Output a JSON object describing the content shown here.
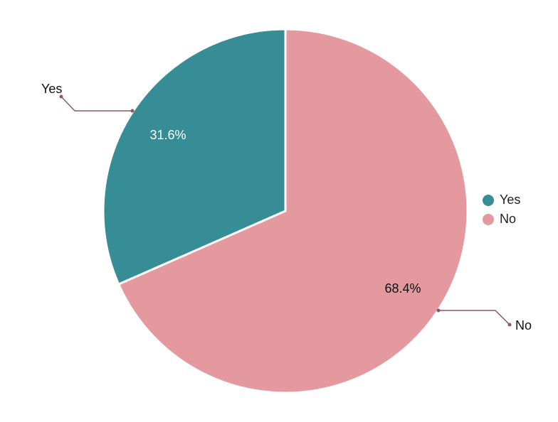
{
  "chart_data": {
    "type": "pie",
    "categories": [
      "Yes",
      "No"
    ],
    "values": [
      31.6,
      68.4
    ],
    "data_labels": [
      "31.6%",
      "68.4%"
    ],
    "colors": [
      "#368D96",
      "#E4999F"
    ],
    "legend_position": "right",
    "legend": [
      {
        "label": "Yes",
        "color": "#368D96"
      },
      {
        "label": "No",
        "color": "#E4999F"
      }
    ]
  }
}
